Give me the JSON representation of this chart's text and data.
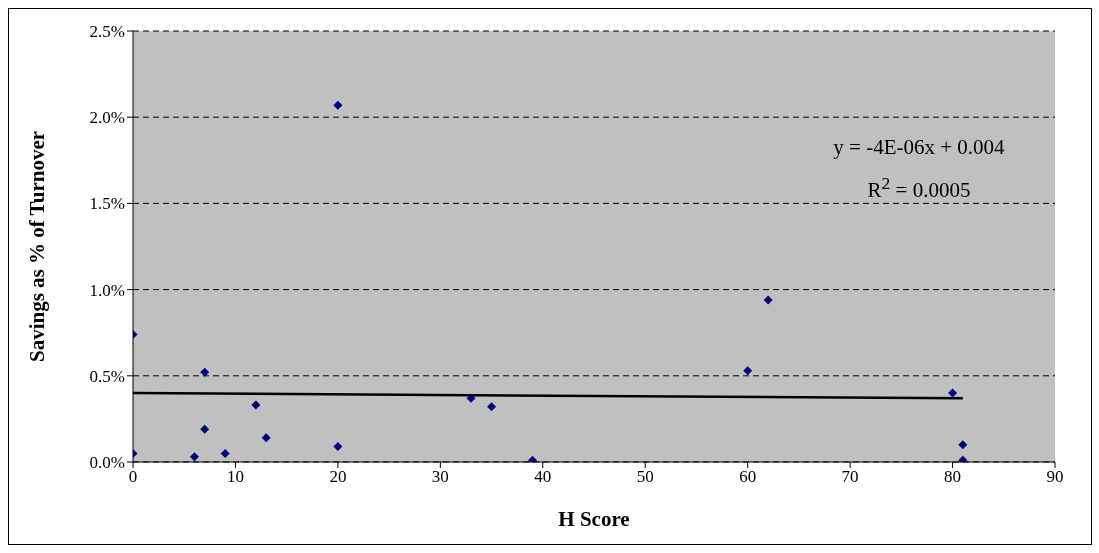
{
  "chart_data": {
    "type": "scatter",
    "xlabel": "H Score",
    "ylabel": "Savings as % of Turnover",
    "xlim": [
      0,
      90
    ],
    "xticks": [
      0,
      10,
      20,
      30,
      40,
      50,
      60,
      70,
      80,
      90
    ],
    "ylim": [
      0,
      2.5
    ],
    "yticks": [
      {
        "value": 0,
        "label": "0.0%"
      },
      {
        "value": 0.5,
        "label": "0.5%"
      },
      {
        "value": 1,
        "label": "1.0%"
      },
      {
        "value": 1.5,
        "label": "1.5%"
      },
      {
        "value": 2,
        "label": "2.0%"
      },
      {
        "value": 2.5,
        "label": "2.5%"
      }
    ],
    "grid": "y",
    "legend": false,
    "series": [
      {
        "marker": "diamond",
        "color": "#000080",
        "x": [
          0,
          0,
          6,
          7,
          7,
          9,
          12,
          13,
          20,
          20,
          33,
          35,
          39,
          60,
          62,
          80,
          81,
          81
        ],
        "values": [
          0.74,
          0.05,
          0.03,
          0.52,
          0.19,
          0.05,
          0.33,
          0.14,
          2.07,
          0.09,
          0.37,
          0.32,
          0.01,
          0.53,
          0.94,
          0.4,
          0.1,
          0.01
        ]
      },
      {
        "type": "line",
        "marker": "none",
        "color": "#000000",
        "line_style": "solid",
        "x": [
          0,
          81
        ],
        "values": [
          0.4,
          0.37
        ]
      }
    ],
    "annotations": [
      "y = -4E-06x + 0.004",
      "R$^{2}$ = 0.0005"
    ]
  }
}
